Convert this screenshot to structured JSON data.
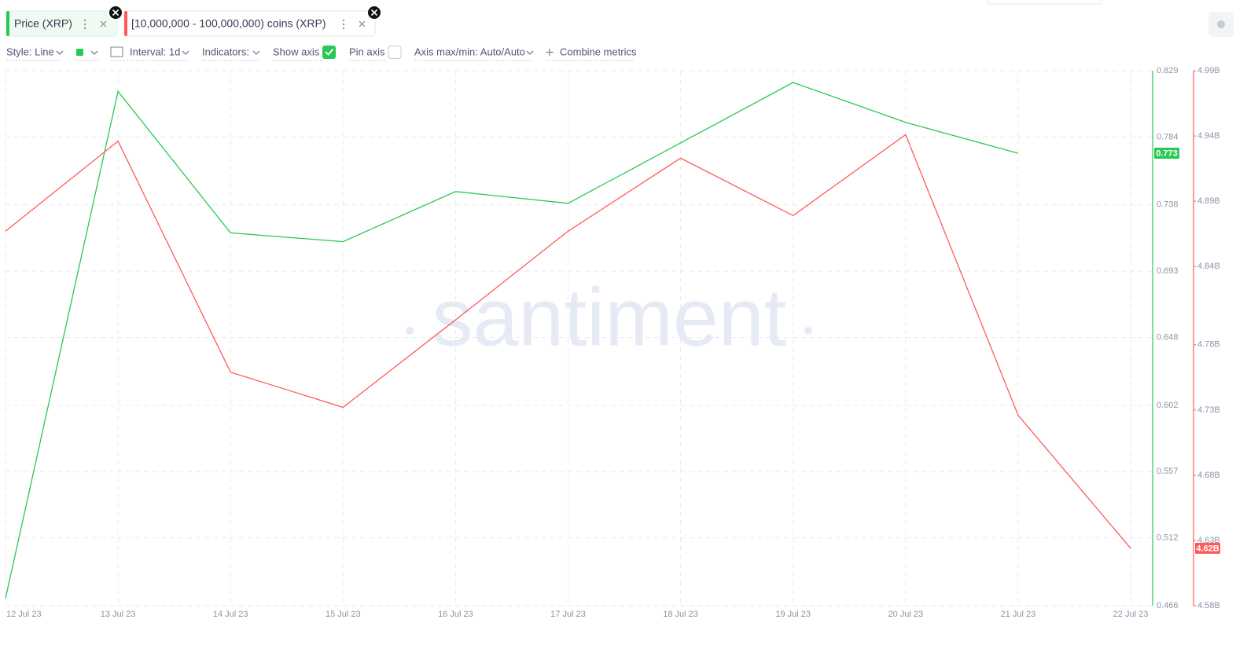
{
  "toolbar": {
    "style": "Style: Line",
    "interval": "Interval: 1d",
    "indicators": "Indicators:",
    "show_axis": "Show axis",
    "pin_axis": "Pin axis",
    "axis_minmax": "Axis max/min: Auto/Auto",
    "combine": "Combine metrics"
  },
  "chart_data": {
    "type": "line",
    "watermark": "santiment",
    "x": [
      "12 Jul 23",
      "13 Jul 23",
      "14 Jul 23",
      "15 Jul 23",
      "16 Jul 23",
      "17 Jul 23",
      "18 Jul 23",
      "19 Jul 23",
      "20 Jul 23",
      "21 Jul 23",
      "22 Jul 23"
    ],
    "series": [
      {
        "name": "Price (XRP)",
        "color": "#26c953",
        "values": [
          0.471,
          0.815,
          0.719,
          0.713,
          0.747,
          0.739,
          0.78,
          0.821,
          0.794,
          0.773,
          null
        ],
        "value_labels": [
          null,
          null,
          null,
          null,
          null,
          null,
          null,
          null,
          null,
          "0.773",
          null
        ]
      },
      {
        "name": "[10,000,000 - 100,000,000) coins (XRP)",
        "color": "#ff5b5b",
        "axis": "y2",
        "values": [
          4867000000,
          4936000000,
          4759000000,
          4732000000,
          4799000000,
          4867000000,
          4923000000,
          4879000000,
          4941000000,
          4726000000,
          4624000000
        ],
        "value_labels": [
          null,
          null,
          null,
          null,
          null,
          null,
          null,
          null,
          null,
          null,
          "4.62B"
        ]
      }
    ],
    "ylim": [
      0.466,
      0.829
    ],
    "yticks": [
      0.829,
      0.784,
      0.738,
      0.693,
      0.648,
      0.602,
      0.557,
      0.512,
      0.466
    ],
    "y2lim": [
      4580000000,
      4990000000
    ],
    "y2ticks": [
      {
        "value": 4990000000,
        "label": "4.99B"
      },
      {
        "value": 4940000000,
        "label": "4.94B"
      },
      {
        "value": 4890000000,
        "label": "4.89B"
      },
      {
        "value": 4840000000,
        "label": "4.84B"
      },
      {
        "value": 4780000000,
        "label": "4.78B"
      },
      {
        "value": 4730000000,
        "label": "4.73B"
      },
      {
        "value": 4680000000,
        "label": "4.68B"
      },
      {
        "value": 4630000000,
        "label": "4.63B"
      },
      {
        "value": 4580000000,
        "label": "4.58B"
      }
    ],
    "grid": true
  }
}
